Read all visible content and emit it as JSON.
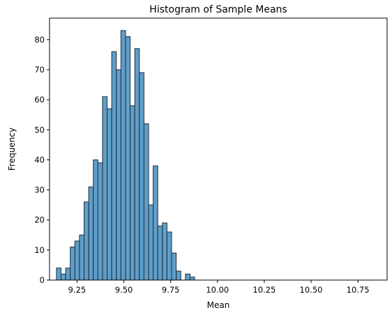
{
  "chart_data": {
    "type": "bar",
    "title": "Histogram of Sample Means",
    "xlabel": "Mean",
    "ylabel": "Frequency",
    "bins": {
      "start": 9.14,
      "width": 0.0246
    },
    "values": [
      4,
      2,
      4,
      11,
      13,
      15,
      26,
      31,
      40,
      39,
      61,
      57,
      76,
      70,
      83,
      81,
      58,
      77,
      69,
      52,
      25,
      38,
      18,
      19,
      16,
      9,
      3,
      0,
      2,
      1
    ],
    "xlim": [
      9.103,
      10.906
    ],
    "ylim": [
      0,
      87.15
    ],
    "xticks": [
      9.25,
      9.5,
      9.75,
      10.0,
      10.25,
      10.5,
      10.75
    ],
    "xtick_labels": [
      "9.25",
      "9.50",
      "9.75",
      "10.00",
      "10.25",
      "10.50",
      "10.75"
    ],
    "yticks": [
      0,
      10,
      20,
      30,
      40,
      50,
      60,
      70,
      80
    ],
    "ytick_labels": [
      "0",
      "10",
      "20",
      "30",
      "40",
      "50",
      "60",
      "70",
      "80"
    ],
    "grid": false,
    "bar_color": "#5f9ec9",
    "edge_color": "#1f2d3a"
  }
}
